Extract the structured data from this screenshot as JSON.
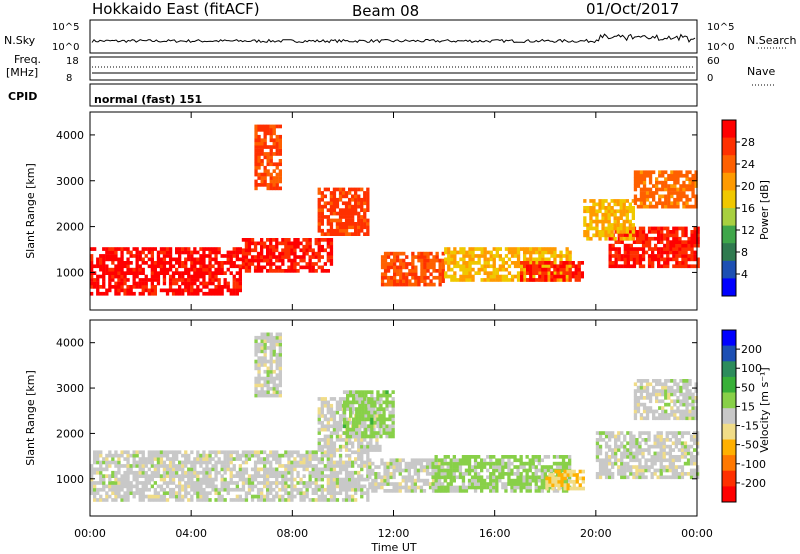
{
  "header": {
    "site": "Hokkaido East (fitACF)",
    "beam": "Beam 08",
    "date": "01/Oct/2017"
  },
  "noise_panel": {
    "left_label": "N.Sky",
    "right_label": "N.Search",
    "ticks": [
      "10^5",
      "10^0"
    ]
  },
  "freq_panel": {
    "left_label_1": "Freq.",
    "left_label_2": "[MHz]",
    "left_ticks": [
      "18",
      "8"
    ],
    "right_label": "Nave",
    "right_ticks": [
      "60",
      "0"
    ]
  },
  "cpid_panel": {
    "label": "CPID",
    "text": "normal (fast) 151"
  },
  "colors": {
    "power_scale": [
      "#0000ff",
      "#1c4fb3",
      "#2f7a4f",
      "#3fa64a",
      "#a8d040",
      "#f0c800",
      "#ff9a00",
      "#ff6000",
      "#ff3000",
      "#ff0000"
    ],
    "velocity_scale": [
      "#ff0000",
      "#ff3000",
      "#ff7800",
      "#ffb000",
      "#f0dc88",
      "#c8c8c8",
      "#88d048",
      "#38b038",
      "#2c8c5c",
      "#1c4fb3",
      "#0000ff"
    ]
  },
  "power_colorbar": {
    "label": "Power [dB]",
    "ticks": [
      "28",
      "24",
      "20",
      "16",
      "12",
      "8",
      "4"
    ]
  },
  "velocity_colorbar": {
    "label": "Velocity [m s⁻¹]",
    "ticks": [
      "200",
      "100",
      "50",
      "15",
      "-15",
      "-50",
      "-100",
      "-200"
    ]
  },
  "time_axis": {
    "label": "Time UT",
    "ticks": [
      "00:00",
      "04:00",
      "08:00",
      "12:00",
      "16:00",
      "20:00",
      "00:00"
    ]
  },
  "chart_data": [
    {
      "type": "heatmap",
      "quantity": "Power",
      "ylabel": "Slant Range [km]",
      "xlabel": "",
      "x_range_hours": [
        0,
        24
      ],
      "ylim": [
        180,
        4500
      ],
      "yticks": [
        1000,
        2000,
        3000,
        4000
      ],
      "color_range": [
        0,
        30
      ],
      "regions": [
        {
          "t": [
            0,
            6
          ],
          "range": [
            500,
            1500
          ],
          "value": 28
        },
        {
          "t": [
            6,
            9.5
          ],
          "range": [
            1000,
            1700
          ],
          "value": 27
        },
        {
          "t": [
            9,
            11
          ],
          "range": [
            1800,
            2800
          ],
          "value": 25
        },
        {
          "t": [
            11.5,
            14
          ],
          "range": [
            700,
            1400
          ],
          "value": 24
        },
        {
          "t": [
            14,
            19
          ],
          "range": [
            800,
            1500
          ],
          "value": 18
        },
        {
          "t": [
            17,
            19.5
          ],
          "range": [
            800,
            1200
          ],
          "value": 27
        },
        {
          "t": [
            20.5,
            24
          ],
          "range": [
            1100,
            2000
          ],
          "value": 27
        },
        {
          "t": [
            19.5,
            21.5
          ],
          "range": [
            1700,
            2600
          ],
          "value": 18
        },
        {
          "t": [
            21.5,
            24
          ],
          "range": [
            2400,
            3200
          ],
          "value": 22
        },
        {
          "t": [
            6.5,
            7.5
          ],
          "range": [
            2800,
            4200
          ],
          "value": 24
        }
      ]
    },
    {
      "type": "heatmap",
      "quantity": "Velocity",
      "ylabel": "Slant Range [km]",
      "xlabel": "Time UT",
      "x_range_hours": [
        0,
        24
      ],
      "ylim": [
        180,
        4500
      ],
      "yticks": [
        1000,
        2000,
        3000,
        4000
      ],
      "color_range": [
        -250,
        250
      ],
      "regions": [
        {
          "t": [
            0,
            11
          ],
          "range": [
            500,
            1600
          ],
          "value": 0
        },
        {
          "t": [
            9,
            11.5
          ],
          "range": [
            1600,
            2800
          ],
          "value": 0
        },
        {
          "t": [
            10,
            12
          ],
          "range": [
            1900,
            2900
          ],
          "value": 40
        },
        {
          "t": [
            11,
            14
          ],
          "range": [
            700,
            1400
          ],
          "value": 0
        },
        {
          "t": [
            13.5,
            19
          ],
          "range": [
            700,
            1500
          ],
          "value": 35
        },
        {
          "t": [
            18,
            19.5
          ],
          "range": [
            750,
            1200
          ],
          "value": -60
        },
        {
          "t": [
            20,
            24
          ],
          "range": [
            1000,
            2000
          ],
          "value": 0
        },
        {
          "t": [
            21.5,
            24
          ],
          "range": [
            2300,
            3200
          ],
          "value": 0
        },
        {
          "t": [
            6.5,
            7.5
          ],
          "range": [
            2800,
            4200
          ],
          "value": 0
        }
      ]
    }
  ]
}
